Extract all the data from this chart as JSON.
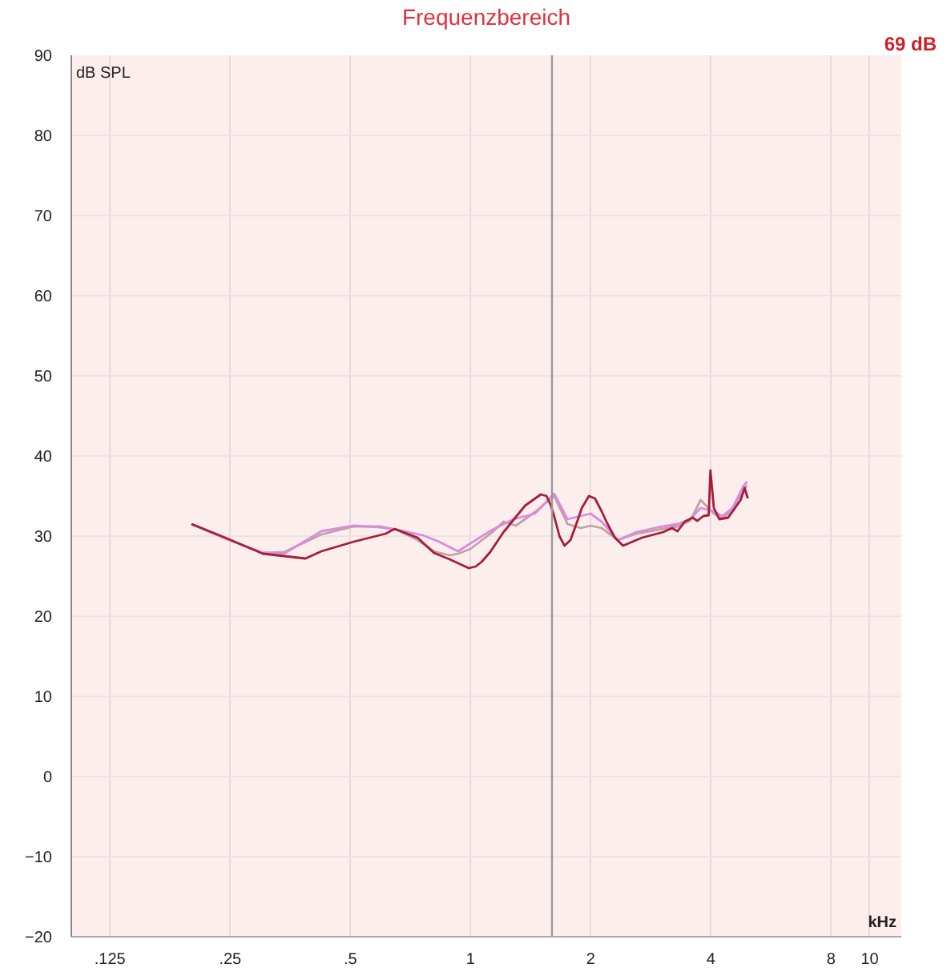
{
  "chart_data": {
    "type": "line",
    "title": "Frequenzbereich",
    "xlabel": "kHz",
    "ylabel": "dB SPL",
    "annotations": [
      "69 dB"
    ],
    "log": "x",
    "grid": true,
    "xlim": [
      0.1,
      12
    ],
    "ylim": [
      -20,
      90
    ],
    "xticks": [
      {
        "value": 0.125,
        "label": ".125"
      },
      {
        "value": 0.25,
        "label": ".25"
      },
      {
        "value": 0.5,
        "label": ".5"
      },
      1,
      2,
      4,
      8,
      10
    ],
    "yticks": [
      -20,
      -10,
      0,
      10,
      20,
      30,
      40,
      50,
      60,
      70,
      80,
      90
    ],
    "ref_lines": [
      {
        "axis": "x",
        "value": 1.6,
        "color": "#9a9a9a"
      }
    ],
    "series": [
      {
        "color": "#bfa3a3",
        "x": [
          0.2,
          0.243,
          0.302,
          0.341,
          0.423,
          0.51,
          0.595,
          0.652,
          0.737,
          0.81,
          0.887,
          0.93,
          1.0,
          1.135,
          1.21,
          1.3,
          1.45,
          1.62,
          1.75,
          1.89,
          2.0,
          2.13,
          2.34,
          2.6,
          2.95,
          3.3,
          3.55,
          3.77,
          4.07,
          4.27,
          4.53,
          4.82,
          4.93
        ],
        "values": [
          31.5,
          29.7,
          27.9,
          28.0,
          30.2,
          31.2,
          31.2,
          30.8,
          29.5,
          28.1,
          27.6,
          27.8,
          28.4,
          30.5,
          31.8,
          31.3,
          33.0,
          35.0,
          31.5,
          31.0,
          31.3,
          31.0,
          29.5,
          30.3,
          30.8,
          31.2,
          31.9,
          34.5,
          32.8,
          32.2,
          33.2,
          35.8,
          36.3
        ]
      },
      {
        "color": "#d98cdc",
        "x": [
          0.2,
          0.243,
          0.302,
          0.341,
          0.423,
          0.51,
          0.595,
          0.652,
          0.76,
          0.834,
          0.93,
          1.0,
          1.135,
          1.28,
          1.45,
          1.62,
          1.75,
          1.89,
          2.0,
          2.13,
          2.34,
          2.6,
          2.95,
          3.3,
          3.55,
          3.77,
          4.07,
          4.27,
          4.53,
          4.82,
          4.93
        ],
        "values": [
          31.5,
          29.7,
          27.9,
          27.8,
          30.6,
          31.3,
          31.1,
          30.8,
          30.1,
          29.3,
          28.1,
          29.1,
          30.8,
          32.1,
          32.8,
          35.3,
          32.1,
          32.5,
          32.8,
          31.8,
          29.5,
          30.5,
          31.1,
          31.5,
          32.1,
          33.5,
          33.1,
          32.5,
          33.5,
          36.2,
          36.8
        ]
      },
      {
        "color": "#a51d3b",
        "x": [
          0.2,
          0.243,
          0.302,
          0.386,
          0.423,
          0.51,
          0.613,
          0.646,
          0.737,
          0.81,
          0.887,
          0.99,
          1.03,
          1.067,
          1.12,
          1.21,
          1.37,
          1.5,
          1.55,
          1.59,
          1.62,
          1.67,
          1.72,
          1.78,
          1.85,
          1.9,
          1.98,
          2.05,
          2.13,
          2.2,
          2.3,
          2.41,
          2.69,
          3.04,
          3.2,
          3.3,
          3.44,
          3.6,
          3.7,
          3.83,
          3.95,
          3.99,
          4.07,
          4.2,
          4.42,
          4.75,
          4.86,
          4.95
        ],
        "values": [
          31.5,
          29.8,
          27.8,
          27.2,
          28.1,
          29.3,
          30.3,
          30.9,
          29.8,
          27.9,
          27.1,
          26.0,
          26.2,
          26.8,
          28.0,
          30.5,
          33.8,
          35.2,
          35.0,
          33.8,
          32.5,
          30.0,
          28.8,
          29.5,
          31.8,
          33.5,
          35.0,
          34.7,
          33.1,
          31.6,
          29.8,
          28.8,
          29.8,
          30.5,
          31.0,
          30.6,
          31.8,
          32.3,
          31.9,
          32.5,
          32.6,
          38.2,
          33.5,
          32.1,
          32.3,
          34.5,
          36.0,
          34.7
        ]
      }
    ]
  }
}
